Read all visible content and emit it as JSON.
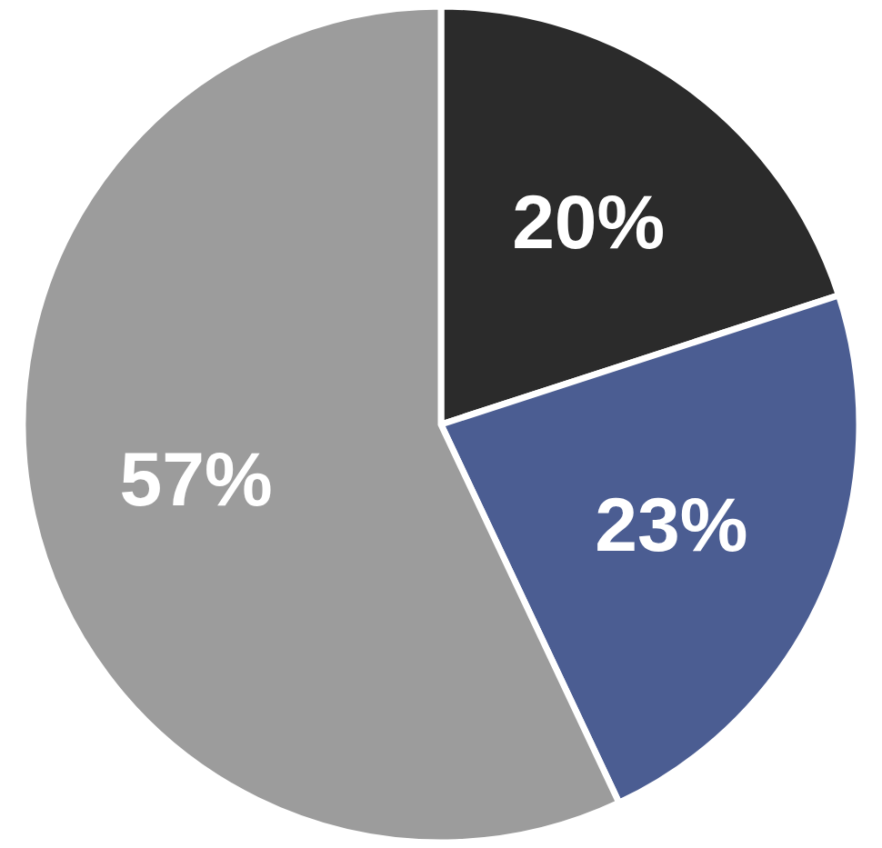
{
  "chart_data": {
    "type": "pie",
    "values": [
      20,
      23,
      57
    ],
    "value_labels": [
      "20%",
      "23%",
      "57%"
    ],
    "colors": [
      "#2b2b2b",
      "#4b5d92",
      "#9c9c9c"
    ],
    "data_labels": true
  }
}
